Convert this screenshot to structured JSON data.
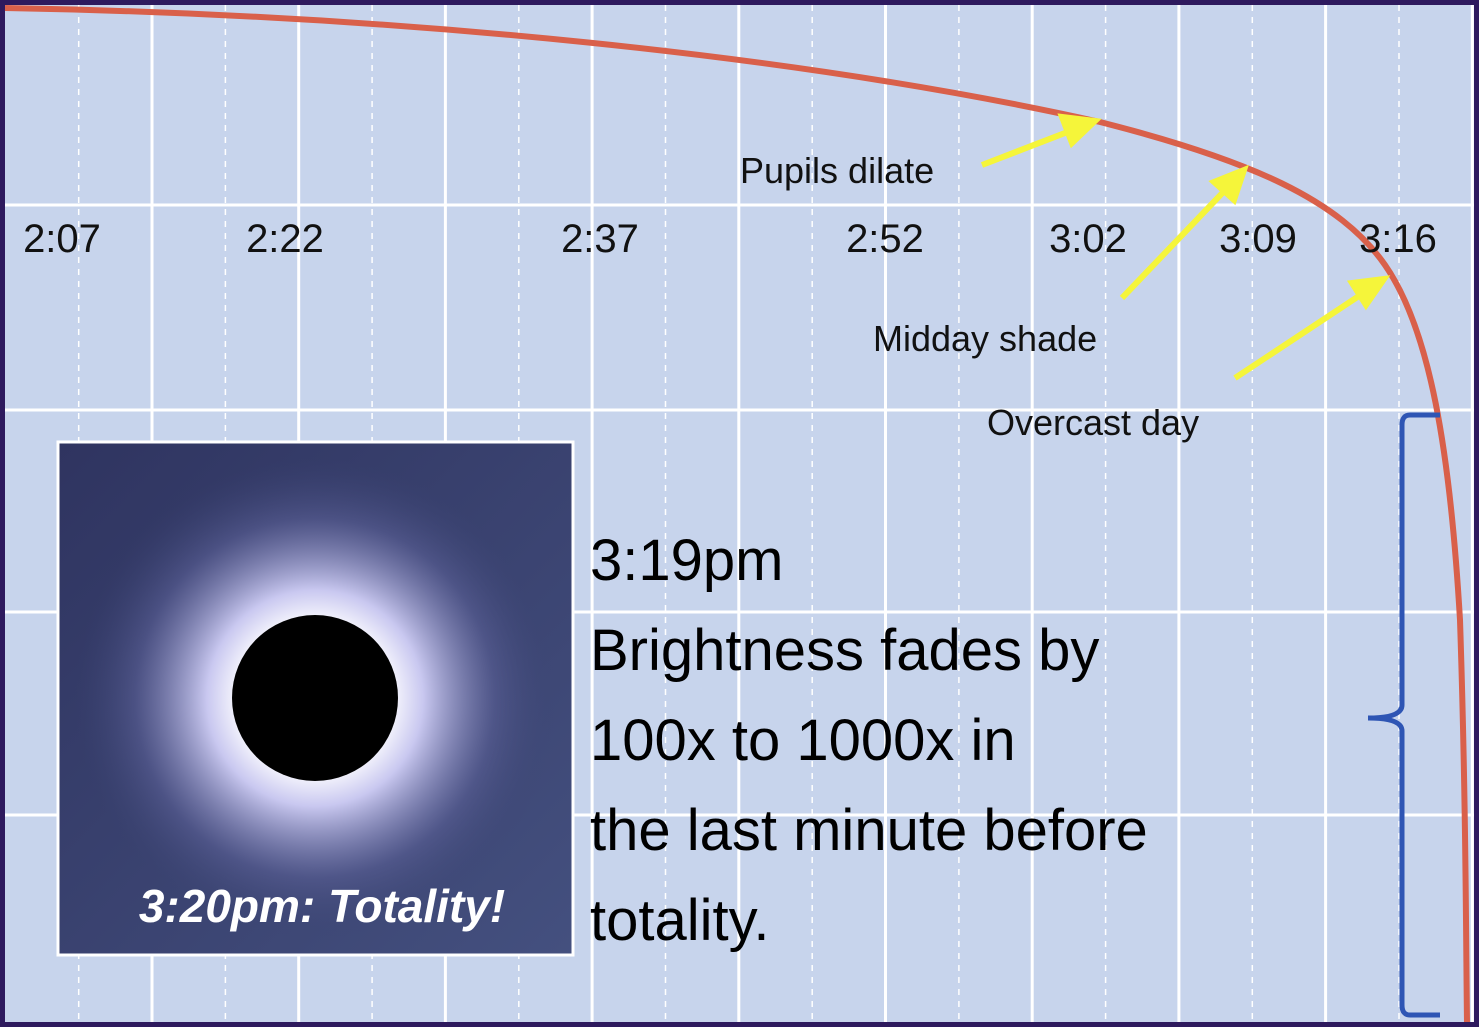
{
  "time_labels": [
    "2:07",
    "2:22",
    "2:37",
    "2:52",
    "3:02",
    "3:09",
    "3:16"
  ],
  "annotations": [
    "Pupils dilate",
    "Midday shade",
    "Overcast day"
  ],
  "photo": {
    "caption": "3:20pm: Totality!"
  },
  "text": {
    "lines": [
      "3:19pm",
      "Brightness fades by",
      "100x to 1000x in",
      "the last minute before",
      "totality."
    ]
  }
}
